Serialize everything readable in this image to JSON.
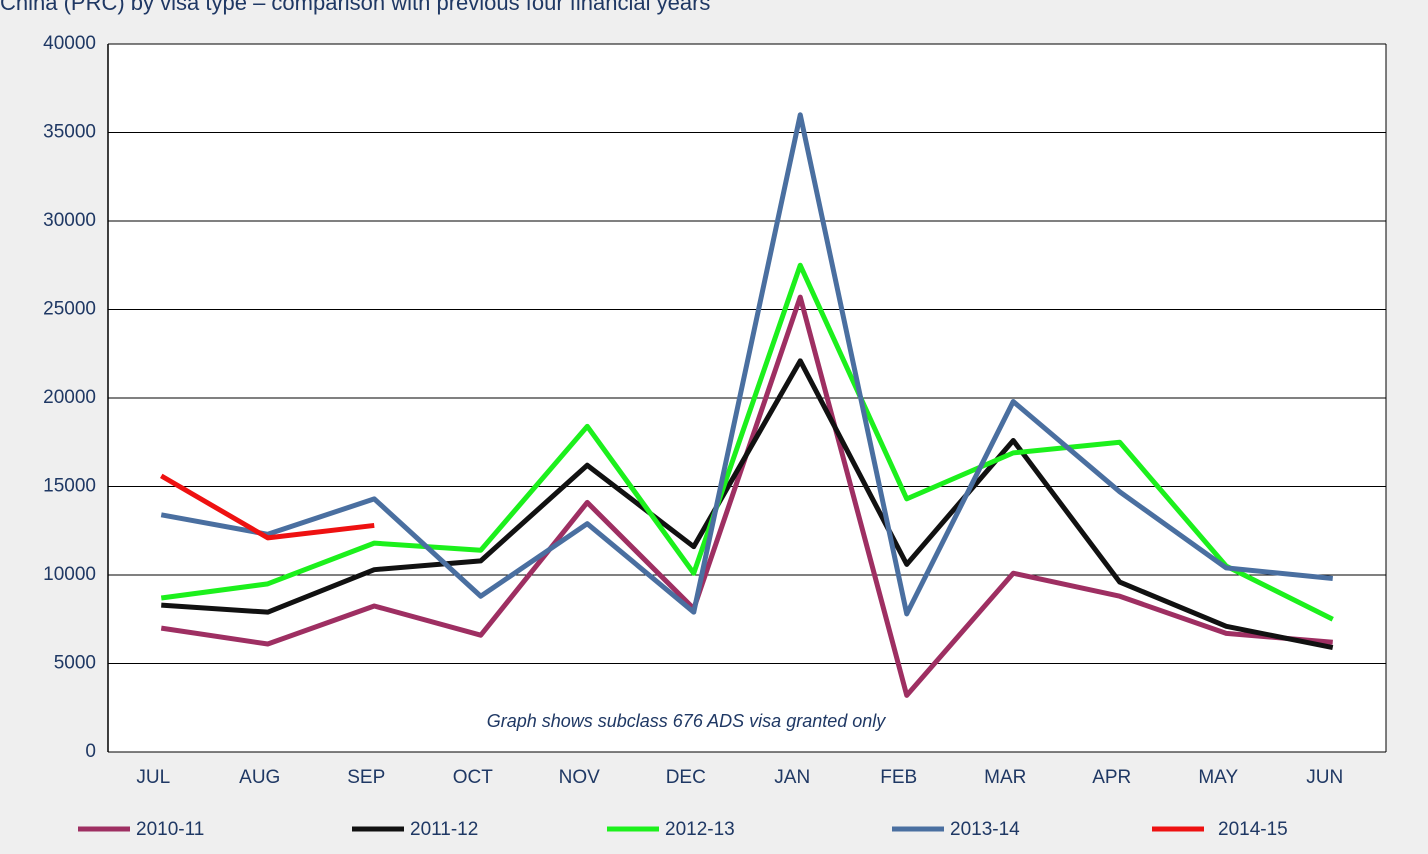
{
  "chart_data": {
    "type": "line",
    "title": "China (PRC) by visa type – comparison with previous four financial years",
    "annotation": "Graph shows subclass 676 ADS visa granted only",
    "categories": [
      "JUL",
      "AUG",
      "SEP",
      "OCT",
      "NOV",
      "DEC",
      "JAN",
      "FEB",
      "MAR",
      "APR",
      "MAY",
      "JUN"
    ],
    "series": [
      {
        "name": "2010-11",
        "color": "#9e2f62",
        "values": [
          7000,
          6100,
          8250,
          6600,
          14100,
          8100,
          25700,
          3200,
          10100,
          8800,
          6700,
          6200
        ]
      },
      {
        "name": "2011-12",
        "color": "#111111",
        "values": [
          8300,
          7900,
          10300,
          10800,
          16200,
          11600,
          22100,
          10600,
          17600,
          9600,
          7100,
          5900
        ]
      },
      {
        "name": "2012-13",
        "color": "#1cf01c",
        "values": [
          8700,
          9500,
          11800,
          11400,
          18400,
          10100,
          27500,
          14300,
          16900,
          17500,
          10500,
          7500
        ]
      },
      {
        "name": "2013-14",
        "color": "#4a6fa0",
        "values": [
          13400,
          12300,
          14300,
          8800,
          12900,
          7900,
          36000,
          7800,
          19800,
          14700,
          10400,
          9800
        ]
      },
      {
        "name": "2014-15",
        "color": "#ee1111",
        "values": [
          15600,
          12100,
          12800,
          null,
          null,
          null,
          null,
          null,
          null,
          null,
          null,
          null
        ]
      }
    ],
    "ylim": [
      0,
      40000
    ],
    "yticks": [
      0,
      5000,
      10000,
      15000,
      20000,
      25000,
      30000,
      35000,
      40000
    ],
    "grid": true
  }
}
